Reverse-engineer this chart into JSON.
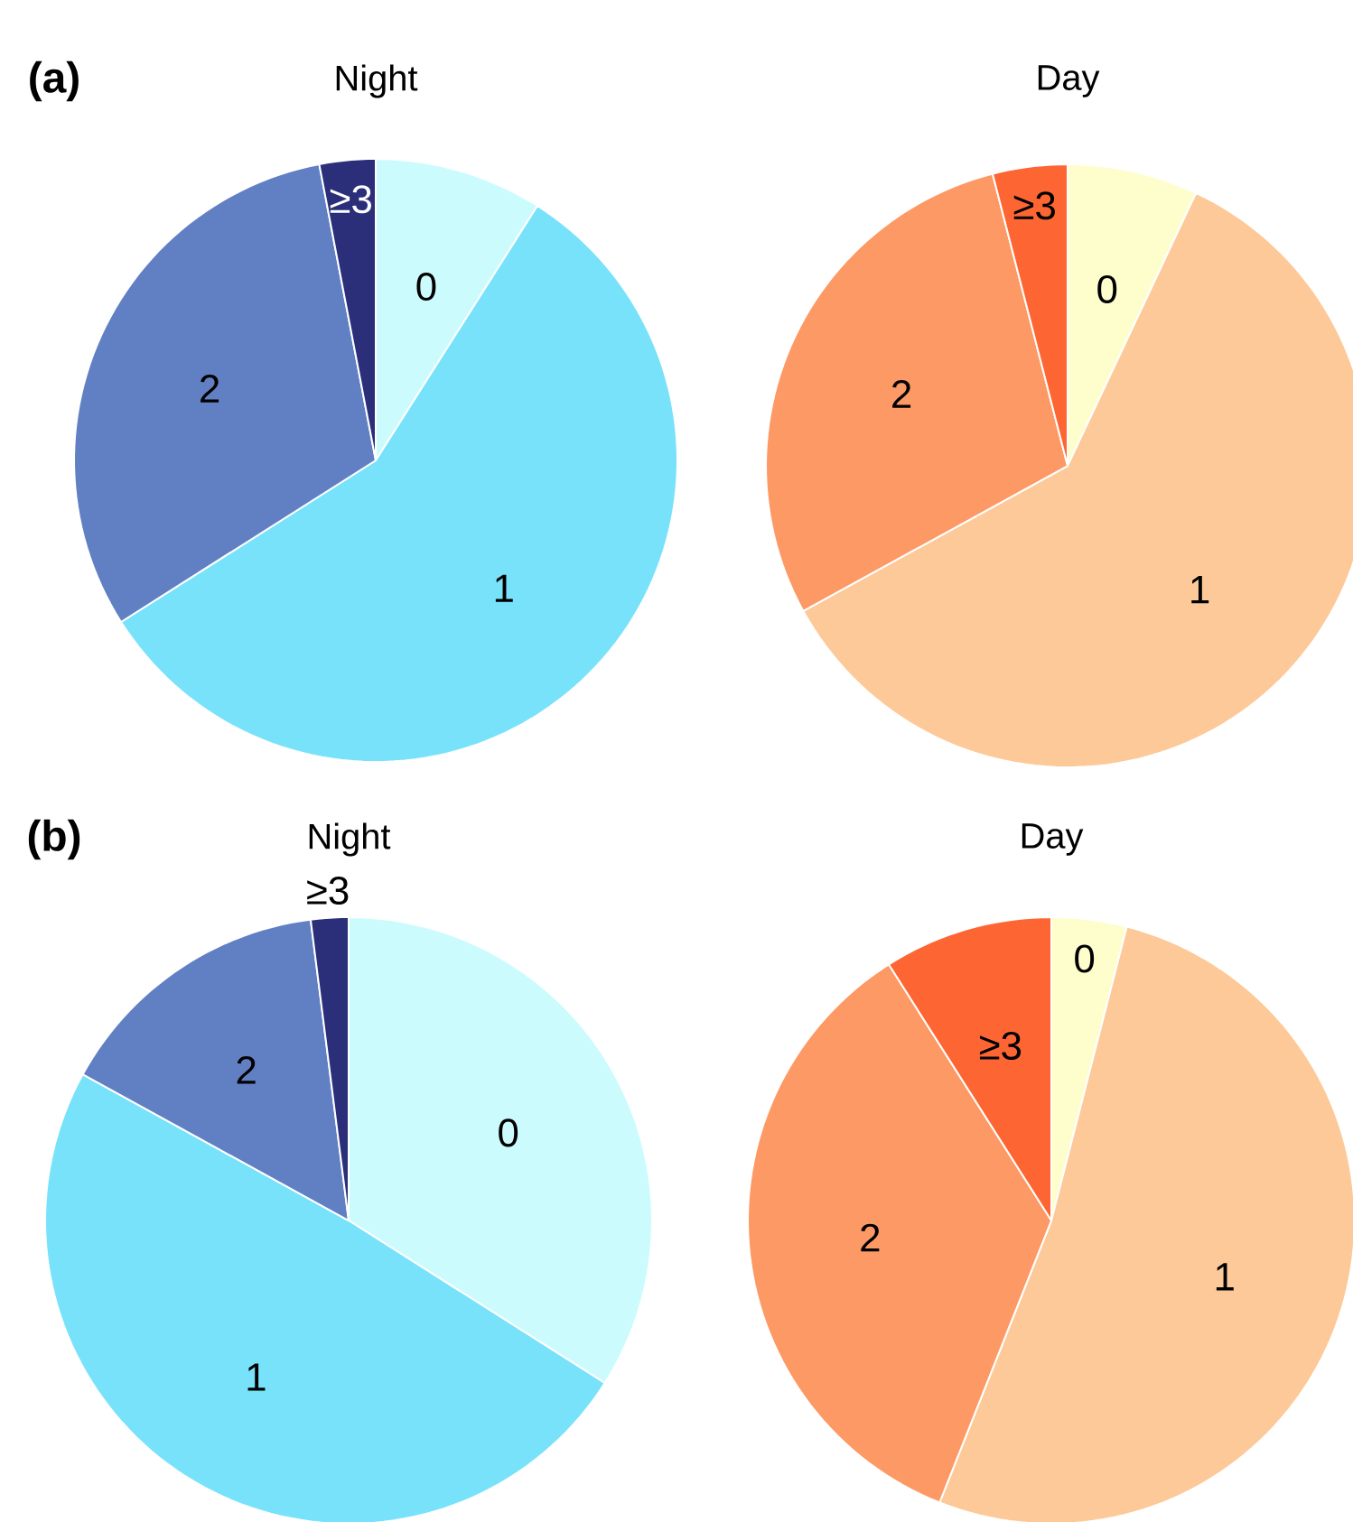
{
  "chart_data": [
    {
      "type": "pie",
      "title": "Night",
      "annotations": [
        "(a)"
      ],
      "categories": [
        "0",
        "1",
        "2",
        "≥3"
      ],
      "values": [
        9,
        57,
        31,
        3
      ],
      "colors": [
        "#ccfbfe",
        "#79e2fb",
        "#6180c4",
        "#2b2f7a"
      ]
    },
    {
      "type": "pie",
      "title": "Day",
      "categories": [
        "0",
        "1",
        "2",
        "≥3"
      ],
      "values": [
        7,
        60,
        29,
        4
      ],
      "colors": [
        "#fefdcc",
        "#fdc999",
        "#fd9964",
        "#fd6632"
      ]
    },
    {
      "type": "pie",
      "title": "Night",
      "annotations": [
        "(b)"
      ],
      "categories": [
        "0",
        "1",
        "2",
        "≥3"
      ],
      "values": [
        34,
        49,
        15,
        2
      ],
      "colors": [
        "#ccfbfe",
        "#79e2fb",
        "#6180c4",
        "#2b2f7a"
      ]
    },
    {
      "type": "pie",
      "title": "Day",
      "categories": [
        "0",
        "1",
        "2",
        "≥3"
      ],
      "values": [
        4,
        52,
        35,
        9
      ],
      "colors": [
        "#fefdcc",
        "#fdc999",
        "#fd9964",
        "#fd6632"
      ]
    }
  ]
}
